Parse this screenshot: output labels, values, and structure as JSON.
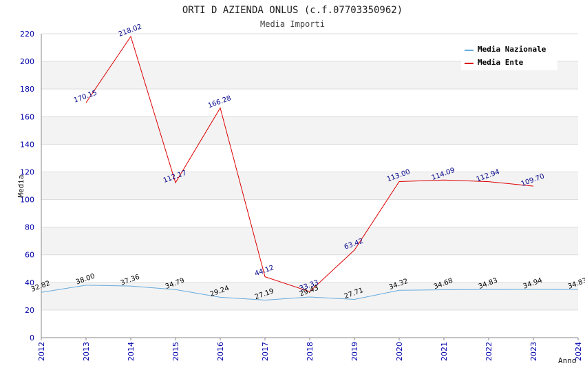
{
  "chart_data": {
    "type": "line",
    "title": "ORTI D AZIENDA ONLUS (c.f.07703350962)",
    "subtitle": "Media Importi",
    "xlabel": "Anno",
    "ylabel": "Media",
    "ylim": [
      0,
      220
    ],
    "yticks": [
      0,
      20,
      40,
      60,
      80,
      100,
      120,
      140,
      160,
      180,
      200,
      220
    ],
    "x": [
      "2012",
      "2013",
      "2014",
      "2015",
      "2016",
      "2017",
      "2018",
      "2019",
      "2020",
      "2021",
      "2022",
      "2023",
      "2024"
    ],
    "grid": "horizontal bands",
    "legend_position": "top-right",
    "series": [
      {
        "name": "Media Nazionale",
        "color": "#66aadd",
        "values": [
          32.82,
          38.0,
          37.36,
          34.79,
          29.24,
          27.19,
          29.43,
          27.71,
          34.32,
          34.68,
          34.83,
          34.94,
          34.83
        ],
        "labels": [
          "32.82",
          "38.00",
          "37.36",
          "34.79",
          "29.24",
          "27.19",
          "29.43",
          "27.71",
          "34.32",
          "34.68",
          "34.83",
          "34.94",
          "34.83"
        ]
      },
      {
        "name": "Media Ente",
        "color": "#dd0000",
        "values": [
          null,
          170.15,
          218.02,
          112.17,
          166.28,
          44.12,
          33.33,
          63.42,
          113.0,
          114.09,
          112.94,
          109.7,
          null
        ],
        "labels": [
          null,
          "170.15",
          "218.02",
          "112.17",
          "166.28",
          "44.12",
          "33.33",
          "63.42",
          "113.00",
          "114.09",
          "112.94",
          "109.70",
          null
        ]
      }
    ]
  }
}
